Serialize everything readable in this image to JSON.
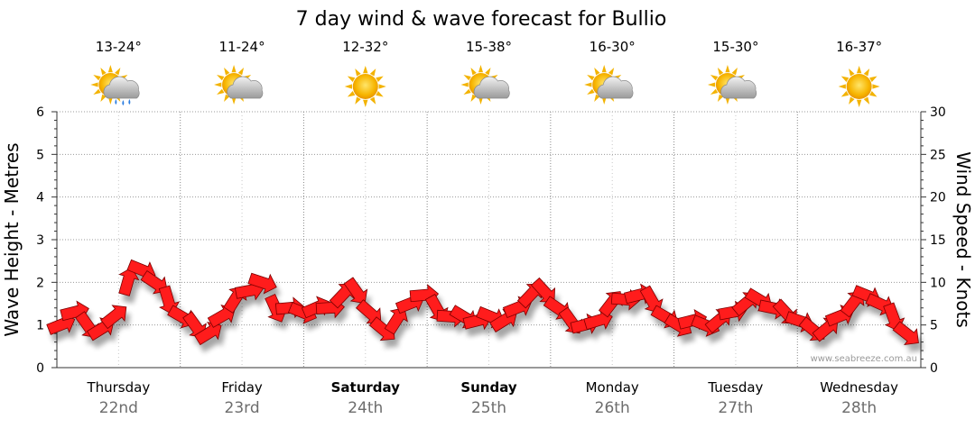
{
  "chart_data": {
    "type": "line",
    "title": "7 day wind & wave forecast for Bullio",
    "ylabel_left": "Wave Height - Metres",
    "ylabel_right": "Wind Speed - Knots",
    "ylim_left": [
      0,
      6
    ],
    "ylim_right": [
      0,
      30
    ],
    "yticks_left": [
      "0",
      "1",
      "2",
      "3",
      "4",
      "5",
      "6"
    ],
    "yticks_right": [
      "0",
      "5",
      "10",
      "15",
      "20",
      "25",
      "30"
    ],
    "grid": true,
    "credit": "www.seabreeze.com.au",
    "days": [
      {
        "name": "Thursday",
        "date": "22nd",
        "temp": "13-24°",
        "icon": "sun-cloud-rain-icon",
        "bold": false
      },
      {
        "name": "Friday",
        "date": "23rd",
        "temp": "11-24°",
        "icon": "sun-cloud-icon",
        "bold": false
      },
      {
        "name": "Saturday",
        "date": "24th",
        "temp": "12-32°",
        "icon": "sun-icon",
        "bold": true
      },
      {
        "name": "Sunday",
        "date": "25th",
        "temp": "15-38°",
        "icon": "sun-cloud-icon",
        "bold": true
      },
      {
        "name": "Monday",
        "date": "26th",
        "temp": "16-30°",
        "icon": "sun-cloud-icon",
        "bold": false
      },
      {
        "name": "Tuesday",
        "date": "27th",
        "temp": "15-30°",
        "icon": "sun-cloud-icon",
        "bold": false
      },
      {
        "name": "Wednesday",
        "date": "28th",
        "temp": "16-37°",
        "icon": "sun-icon",
        "bold": false
      }
    ],
    "series": [
      {
        "name": "Wind Speed - Knots",
        "color": "#ff1a1a",
        "values": [
          5,
          6.5,
          5,
          4.5,
          6,
          10,
          11.5,
          10,
          8,
          6,
          5,
          4,
          6,
          8,
          9,
          10,
          7,
          7,
          6.5,
          7,
          7,
          8.5,
          9,
          6.5,
          4.5,
          5.5,
          7.5,
          8.5,
          7,
          6,
          6,
          5.5,
          6,
          5.5,
          7,
          8.5,
          9,
          7,
          5.5,
          5,
          5.5,
          7.5,
          8,
          8.5,
          8,
          6,
          5,
          5.5,
          5,
          5.5,
          6.5,
          7.5,
          8,
          7,
          6.5,
          5.5,
          4.5,
          4.5,
          6,
          7.5,
          8.5,
          7.5,
          6,
          4
        ]
      }
    ]
  }
}
